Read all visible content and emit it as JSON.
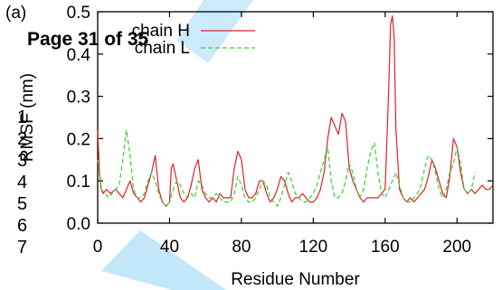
{
  "overlay": {
    "header_text": "Page 31 of 35",
    "line_numbers": [
      "1",
      "2",
      "3",
      "4",
      "5",
      "6",
      "7"
    ]
  },
  "chart_data": {
    "type": "line",
    "panel_label": "(a)",
    "xlabel": "Residue Number",
    "ylabel": "RMSF (nm)",
    "xlim": [
      0,
      220
    ],
    "ylim": [
      0,
      0.5
    ],
    "x_ticks": [
      0,
      40,
      80,
      120,
      160,
      200
    ],
    "y_ticks": [
      0.0,
      0.1,
      0.2,
      0.3,
      0.4,
      0.5
    ],
    "legend_position": "top-left",
    "series": [
      {
        "name": "chain H",
        "color": "#e0202a",
        "dash": "solid",
        "x": [
          0,
          1,
          2,
          3,
          5,
          7,
          10,
          12,
          14,
          16,
          18,
          20,
          22,
          24,
          26,
          28,
          30,
          32,
          34,
          36,
          38,
          40,
          41,
          42,
          44,
          46,
          48,
          50,
          52,
          54,
          56,
          58,
          60,
          62,
          64,
          66,
          68,
          70,
          72,
          74,
          76,
          78,
          80,
          82,
          84,
          86,
          88,
          90,
          92,
          94,
          96,
          98,
          100,
          102,
          104,
          106,
          108,
          110,
          112,
          114,
          116,
          118,
          120,
          122,
          124,
          126,
          128,
          130,
          132,
          134,
          136,
          138,
          140,
          142,
          144,
          146,
          148,
          150,
          152,
          154,
          156,
          158,
          160,
          162,
          163,
          164,
          165,
          166,
          168,
          170,
          172,
          174,
          176,
          178,
          180,
          182,
          184,
          186,
          188,
          190,
          192,
          194,
          196,
          198,
          200,
          202,
          204,
          206,
          208,
          210,
          212,
          214,
          216,
          218,
          220
        ],
        "y": [
          0.22,
          0.12,
          0.08,
          0.07,
          0.08,
          0.07,
          0.08,
          0.07,
          0.06,
          0.08,
          0.1,
          0.07,
          0.06,
          0.05,
          0.06,
          0.09,
          0.12,
          0.16,
          0.08,
          0.05,
          0.04,
          0.05,
          0.13,
          0.14,
          0.1,
          0.06,
          0.05,
          0.06,
          0.09,
          0.13,
          0.15,
          0.08,
          0.06,
          0.05,
          0.06,
          0.05,
          0.07,
          0.06,
          0.06,
          0.06,
          0.13,
          0.17,
          0.15,
          0.08,
          0.06,
          0.06,
          0.07,
          0.1,
          0.1,
          0.07,
          0.05,
          0.06,
          0.08,
          0.11,
          0.1,
          0.07,
          0.05,
          0.06,
          0.06,
          0.07,
          0.06,
          0.05,
          0.05,
          0.06,
          0.08,
          0.12,
          0.2,
          0.25,
          0.23,
          0.21,
          0.26,
          0.24,
          0.13,
          0.1,
          0.08,
          0.06,
          0.05,
          0.06,
          0.06,
          0.06,
          0.06,
          0.07,
          0.08,
          0.32,
          0.47,
          0.49,
          0.44,
          0.22,
          0.08,
          0.06,
          0.05,
          0.06,
          0.05,
          0.06,
          0.07,
          0.08,
          0.11,
          0.15,
          0.13,
          0.1,
          0.07,
          0.06,
          0.11,
          0.2,
          0.18,
          0.12,
          0.08,
          0.07,
          0.08,
          0.07,
          0.08,
          0.09,
          0.08,
          0.08,
          0.09
        ]
      },
      {
        "name": "chain L",
        "color": "#35d235",
        "dash": "dashed",
        "x": [
          0,
          2,
          4,
          6,
          8,
          10,
          12,
          14,
          16,
          18,
          20,
          22,
          24,
          26,
          28,
          30,
          32,
          34,
          36,
          38,
          40,
          42,
          44,
          46,
          48,
          50,
          52,
          54,
          56,
          58,
          60,
          62,
          64,
          66,
          68,
          70,
          72,
          74,
          76,
          78,
          80,
          82,
          84,
          86,
          88,
          90,
          92,
          94,
          96,
          98,
          100,
          102,
          104,
          106,
          108,
          110,
          112,
          114,
          116,
          118,
          120,
          122,
          124,
          126,
          128,
          130,
          132,
          134,
          136,
          138,
          140,
          142,
          144,
          146,
          148,
          150,
          152,
          154,
          156,
          158,
          160,
          162,
          164,
          166,
          168,
          170,
          172,
          174,
          176,
          178,
          180,
          182,
          184,
          186,
          188,
          190,
          192,
          194,
          196,
          198,
          200,
          202,
          204,
          206,
          208,
          210
        ],
        "y": [
          0.15,
          0.08,
          0.07,
          0.06,
          0.07,
          0.08,
          0.09,
          0.15,
          0.22,
          0.16,
          0.08,
          0.06,
          0.06,
          0.07,
          0.1,
          0.12,
          0.1,
          0.07,
          0.05,
          0.04,
          0.05,
          0.08,
          0.1,
          0.09,
          0.07,
          0.06,
          0.07,
          0.06,
          0.1,
          0.09,
          0.07,
          0.06,
          0.06,
          0.07,
          0.06,
          0.05,
          0.05,
          0.05,
          0.07,
          0.11,
          0.09,
          0.06,
          0.05,
          0.05,
          0.06,
          0.08,
          0.1,
          0.09,
          0.06,
          0.05,
          0.04,
          0.06,
          0.09,
          0.12,
          0.1,
          0.07,
          0.06,
          0.05,
          0.05,
          0.06,
          0.07,
          0.09,
          0.12,
          0.15,
          0.18,
          0.1,
          0.06,
          0.06,
          0.07,
          0.1,
          0.14,
          0.12,
          0.08,
          0.06,
          0.08,
          0.13,
          0.17,
          0.19,
          0.12,
          0.07,
          0.06,
          0.08,
          0.1,
          0.12,
          0.09,
          0.06,
          0.05,
          0.05,
          0.06,
          0.07,
          0.09,
          0.13,
          0.16,
          0.15,
          0.12,
          0.08,
          0.06,
          0.08,
          0.12,
          0.14,
          0.18,
          0.14,
          0.08,
          0.07,
          0.08,
          0.12
        ]
      }
    ]
  }
}
